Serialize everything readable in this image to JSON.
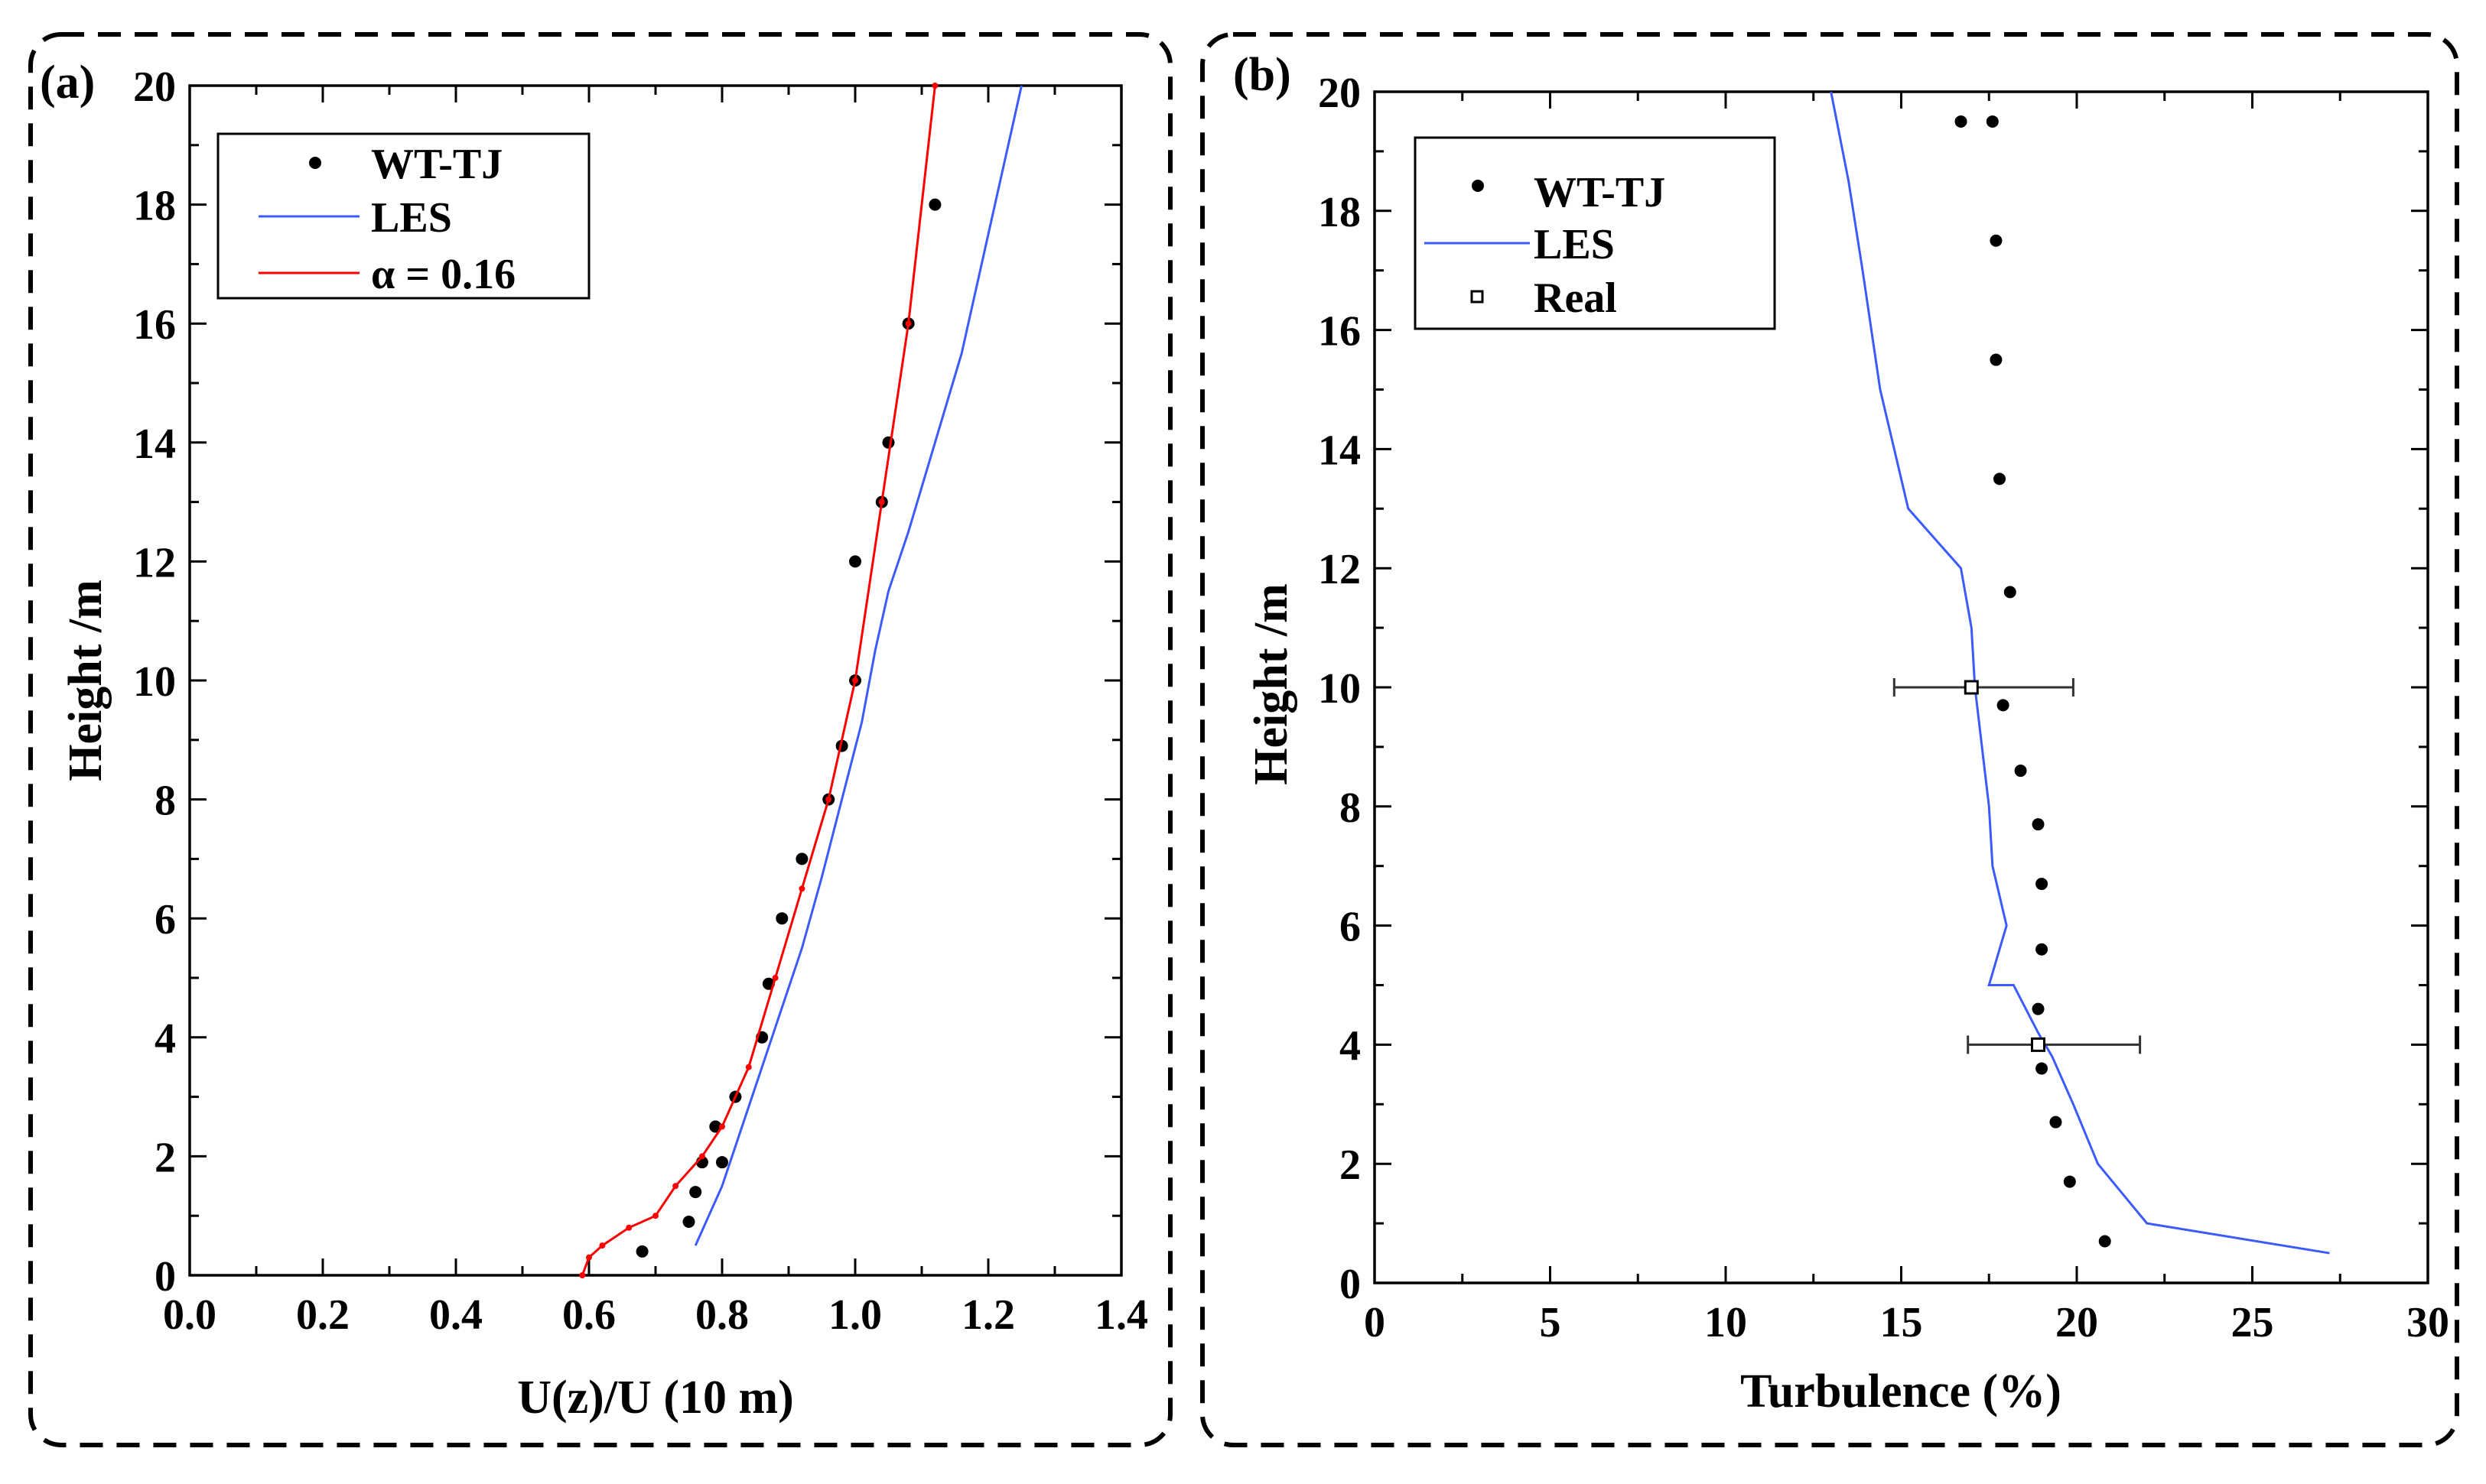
{
  "chart_data": [
    {
      "type": "line",
      "panel_label": "(a)",
      "xlabel": "U(z)/U (10 m)",
      "ylabel": "Height /m",
      "xlim": [
        0.0,
        1.4
      ],
      "ylim": [
        0,
        20
      ],
      "xticks": [
        "0.0",
        "0.2",
        "0.4",
        "0.6",
        "0.8",
        "1.0",
        "1.2",
        "1.4"
      ],
      "yticks": [
        "0",
        "2",
        "4",
        "6",
        "8",
        "10",
        "12",
        "14",
        "16",
        "18",
        "20"
      ],
      "legend_position": "top-left",
      "legend": [
        {
          "label": "WT-TJ",
          "marker": "dot",
          "color": "#000000"
        },
        {
          "label": "LES",
          "marker": "line",
          "color": "#3b5bff"
        },
        {
          "label": "α = 0.16",
          "marker": "line",
          "color": "#ff0000"
        }
      ],
      "series": [
        {
          "name": "WT-TJ",
          "kind": "scatter",
          "color": "#000000",
          "x": [
            0.68,
            0.75,
            0.76,
            0.77,
            0.79,
            0.8,
            0.82,
            0.86,
            0.87,
            0.89,
            0.92,
            0.96,
            0.98,
            1.0,
            1.0,
            1.04,
            1.05,
            1.08,
            1.12
          ],
          "y": [
            0.4,
            0.9,
            1.4,
            1.9,
            2.5,
            1.9,
            3.0,
            4.0,
            4.9,
            6.0,
            7.0,
            8.0,
            8.9,
            10.0,
            12.0,
            13.0,
            14.0,
            16.0,
            18.0
          ]
        },
        {
          "name": "LES",
          "kind": "line",
          "color": "#3b5bff",
          "x": [
            0.76,
            0.78,
            0.8,
            0.83,
            0.86,
            0.89,
            0.92,
            0.95,
            0.98,
            1.01,
            1.03,
            1.05,
            1.08,
            1.12,
            1.16,
            1.2,
            1.23,
            1.25
          ],
          "y": [
            0.5,
            1.0,
            1.5,
            2.5,
            3.5,
            4.5,
            5.5,
            6.7,
            8.0,
            9.3,
            10.5,
            11.5,
            12.5,
            14.0,
            15.5,
            17.5,
            19.0,
            20.0
          ]
        },
        {
          "name": "α = 0.16",
          "kind": "line",
          "color": "#ff0000",
          "x": [
            0.59,
            0.6,
            0.62,
            0.66,
            0.7,
            0.73,
            0.77,
            0.8,
            0.84,
            0.88,
            0.92,
            0.96,
            1.0,
            1.04,
            1.08,
            1.12
          ],
          "y": [
            0.0,
            0.3,
            0.5,
            0.8,
            1.0,
            1.5,
            2.0,
            2.5,
            3.5,
            5.0,
            6.5,
            8.0,
            10.0,
            13.0,
            16.0,
            20.0
          ]
        }
      ]
    },
    {
      "type": "line",
      "panel_label": "(b)",
      "xlabel": "Turbulence (%)",
      "ylabel": "Height /m",
      "xlim": [
        0,
        30
      ],
      "ylim": [
        0,
        20
      ],
      "xticks": [
        "0",
        "5",
        "10",
        "15",
        "20",
        "25",
        "30"
      ],
      "yticks": [
        "0",
        "2",
        "4",
        "6",
        "8",
        "10",
        "12",
        "14",
        "16",
        "18",
        "20"
      ],
      "legend_position": "top-left",
      "legend": [
        {
          "label": "WT-TJ",
          "marker": "dot",
          "color": "#000000"
        },
        {
          "label": "LES",
          "marker": "line",
          "color": "#3b5bff"
        },
        {
          "label": "Real",
          "marker": "square",
          "color": "#000000"
        }
      ],
      "series": [
        {
          "name": "WT-TJ",
          "kind": "scatter",
          "color": "#000000",
          "x": [
            20.8,
            19.8,
            19.4,
            19.0,
            18.9,
            19.0,
            19.0,
            18.9,
            18.4,
            17.9,
            18.1,
            17.8,
            17.7,
            17.7,
            17.6,
            16.7
          ],
          "y": [
            0.7,
            1.7,
            2.7,
            3.6,
            4.6,
            5.6,
            6.7,
            7.7,
            8.6,
            9.7,
            11.6,
            13.5,
            15.5,
            17.5,
            19.5,
            19.5
          ]
        },
        {
          "name": "LES",
          "kind": "line",
          "color": "#3b5bff",
          "x": [
            27.2,
            22.0,
            20.6,
            19.9,
            19.3,
            18.9,
            18.2,
            17.5,
            18.0,
            17.6,
            17.5,
            17.3,
            17.1,
            17.0,
            16.7,
            15.2,
            14.4,
            13.9,
            13.5,
            13.0
          ],
          "y": [
            0.5,
            1.0,
            2.0,
            3.0,
            3.8,
            4.2,
            5.0,
            5.0,
            6.0,
            7.0,
            8.0,
            9.0,
            10.0,
            11.0,
            12.0,
            13.0,
            15.0,
            17.0,
            18.5,
            20.0
          ]
        },
        {
          "name": "Real",
          "kind": "errorbar",
          "color": "#000000",
          "x": [
            17.0,
            18.9
          ],
          "y": [
            10.0,
            4.0
          ],
          "xerr": [
            [
              2.2,
              2.9
            ],
            [
              2.0,
              2.9
            ]
          ]
        }
      ]
    }
  ]
}
